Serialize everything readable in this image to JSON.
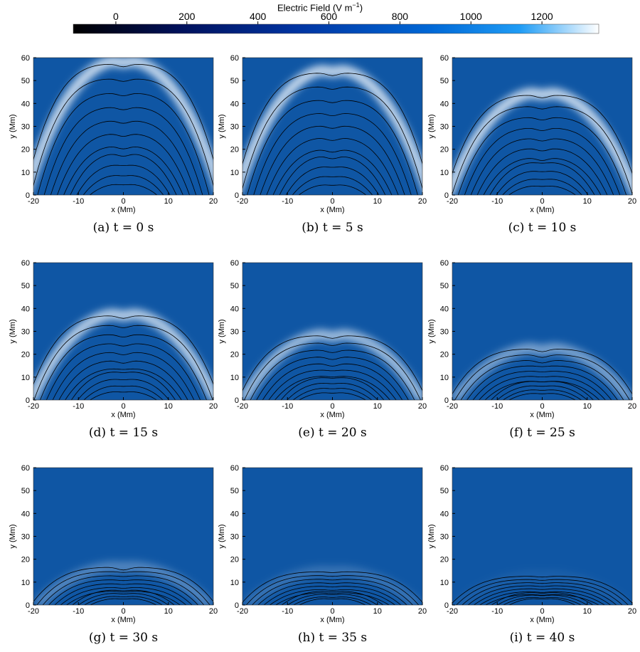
{
  "colorbar": {
    "title_main": "Electric Field (V m",
    "title_sup": "−1",
    "title_close": ")",
    "ticks": [
      "0",
      "200",
      "400",
      "600",
      "800",
      "1000",
      "1200"
    ],
    "tick_values": [
      0,
      200,
      400,
      600,
      800,
      1000,
      1200
    ],
    "range": [
      -120,
      1360
    ],
    "colors": [
      "#000000",
      "#00105a",
      "#0033a0",
      "#0068d6",
      "#1f9cf5",
      "#ffffff"
    ]
  },
  "chart_data": [
    {
      "type": "heatmap",
      "panel": "(a)",
      "label": "t = 0 s",
      "time_s": 0,
      "front_y_Mm": 59,
      "xlabel": "x (Mm)",
      "ylabel": "y (Mm)",
      "xlim": [
        -20,
        20
      ],
      "ylim": [
        0,
        60
      ],
      "xticks": [
        "-20",
        "-10",
        "0",
        "10",
        "20"
      ],
      "yticks": [
        "0",
        "10",
        "20",
        "30",
        "40",
        "50",
        "60"
      ],
      "background_field_Vm": 600,
      "front_peak_field_Vm": 1300
    },
    {
      "type": "heatmap",
      "panel": "(b)",
      "label": "t = 5 s",
      "time_s": 5,
      "front_y_Mm": 55,
      "xlabel": "x (Mm)",
      "ylabel": "y (Mm)",
      "xlim": [
        -20,
        20
      ],
      "ylim": [
        0,
        60
      ],
      "xticks": [
        "-20",
        "-10",
        "0",
        "10",
        "20"
      ],
      "yticks": [
        "0",
        "10",
        "20",
        "30",
        "40",
        "50",
        "60"
      ],
      "background_field_Vm": 600,
      "front_peak_field_Vm": 1300
    },
    {
      "type": "heatmap",
      "panel": "(c)",
      "label": "t = 10 s",
      "time_s": 10,
      "front_y_Mm": 45,
      "xlabel": "x (Mm)",
      "ylabel": "y (Mm)",
      "xlim": [
        -20,
        20
      ],
      "ylim": [
        0,
        60
      ],
      "xticks": [
        "-20",
        "-10",
        "0",
        "10",
        "20"
      ],
      "yticks": [
        "0",
        "10",
        "20",
        "30",
        "40",
        "50",
        "60"
      ],
      "background_field_Vm": 600,
      "front_peak_field_Vm": 1300
    },
    {
      "type": "heatmap",
      "panel": "(d)",
      "label": "t = 15 s",
      "time_s": 15,
      "front_y_Mm": 38,
      "xlabel": "x (Mm)",
      "ylabel": "y (Mm)",
      "xlim": [
        -20,
        20
      ],
      "ylim": [
        0,
        60
      ],
      "xticks": [
        "-20",
        "-10",
        "0",
        "10",
        "20"
      ],
      "yticks": [
        "0",
        "10",
        "20",
        "30",
        "40",
        "50",
        "60"
      ],
      "background_field_Vm": 600,
      "front_peak_field_Vm": 1250
    },
    {
      "type": "heatmap",
      "panel": "(e)",
      "label": "t = 20 s",
      "time_s": 20,
      "front_y_Mm": 29,
      "xlabel": "x (Mm)",
      "ylabel": "y (Mm)",
      "xlim": [
        -20,
        20
      ],
      "ylim": [
        0,
        60
      ],
      "xticks": [
        "-20",
        "-10",
        "0",
        "10",
        "20"
      ],
      "yticks": [
        "0",
        "10",
        "20",
        "30",
        "40",
        "50",
        "60"
      ],
      "background_field_Vm": 600,
      "front_peak_field_Vm": 1150
    },
    {
      "type": "heatmap",
      "panel": "(f)",
      "label": "t = 25 s",
      "time_s": 25,
      "front_y_Mm": 23,
      "xlabel": "x (Mm)",
      "ylabel": "y (Mm)",
      "xlim": [
        -20,
        20
      ],
      "ylim": [
        0,
        60
      ],
      "xticks": [
        "-20",
        "-10",
        "0",
        "10",
        "20"
      ],
      "yticks": [
        "0",
        "10",
        "20",
        "30",
        "40",
        "50",
        "60"
      ],
      "background_field_Vm": 600,
      "front_peak_field_Vm": 1000
    },
    {
      "type": "heatmap",
      "panel": "(g)",
      "label": "t = 30 s",
      "time_s": 30,
      "front_y_Mm": 17,
      "xlabel": "x (Mm)",
      "ylabel": "y (Mm)",
      "xlim": [
        -20,
        20
      ],
      "ylim": [
        0,
        60
      ],
      "xticks": [
        "-20",
        "-10",
        "0",
        "10",
        "20"
      ],
      "yticks": [
        "0",
        "10",
        "20",
        "30",
        "40",
        "50",
        "60"
      ],
      "background_field_Vm": 600,
      "front_peak_field_Vm": 850
    },
    {
      "type": "heatmap",
      "panel": "(h)",
      "label": "t = 35 s",
      "time_s": 35,
      "front_y_Mm": 15,
      "xlabel": "x (Mm)",
      "ylabel": "y (Mm)",
      "xlim": [
        -20,
        20
      ],
      "ylim": [
        0,
        60
      ],
      "xticks": [
        "-20",
        "-10",
        "0",
        "10",
        "20"
      ],
      "yticks": [
        "0",
        "10",
        "20",
        "30",
        "40",
        "50",
        "60"
      ],
      "background_field_Vm": 600,
      "front_peak_field_Vm": 750
    },
    {
      "type": "heatmap",
      "panel": "(i)",
      "label": "t = 40 s",
      "time_s": 40,
      "front_y_Mm": 13,
      "xlabel": "x (Mm)",
      "ylabel": "y (Mm)",
      "xlim": [
        -20,
        20
      ],
      "ylim": [
        0,
        60
      ],
      "xticks": [
        "-20",
        "-10",
        "0",
        "10",
        "20"
      ],
      "yticks": [
        "0",
        "10",
        "20",
        "30",
        "40",
        "50",
        "60"
      ],
      "background_field_Vm": 600,
      "front_peak_field_Vm": 650
    }
  ]
}
